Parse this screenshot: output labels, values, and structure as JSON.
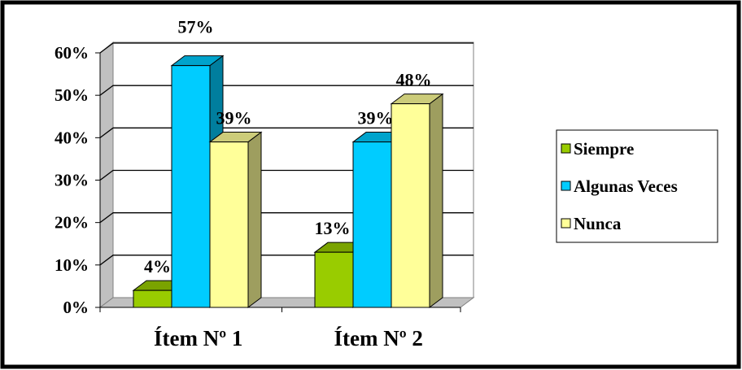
{
  "chart_data": {
    "type": "bar",
    "title": "",
    "xlabel": "",
    "ylabel": "",
    "categories": [
      "Ítem Nº 1",
      "Ítem Nº 2"
    ],
    "ylim": [
      0,
      60
    ],
    "y_ticks": [
      "0%",
      "10%",
      "20%",
      "30%",
      "40%",
      "50%",
      "60%"
    ],
    "value_suffix": "%",
    "three_d": true,
    "legend_position": "right",
    "series": [
      {
        "name": "Siempre",
        "values": [
          4,
          13
        ],
        "labels": [
          "4%",
          "13%"
        ],
        "color": "#99cc00"
      },
      {
        "name": "Algunas Veces",
        "values": [
          57,
          39
        ],
        "labels": [
          "57%",
          "39%"
        ],
        "color": "#00ccff"
      },
      {
        "name": "Nunca",
        "values": [
          39,
          48
        ],
        "labels": [
          "39%",
          "48%"
        ],
        "color": "#ffff99"
      }
    ]
  }
}
